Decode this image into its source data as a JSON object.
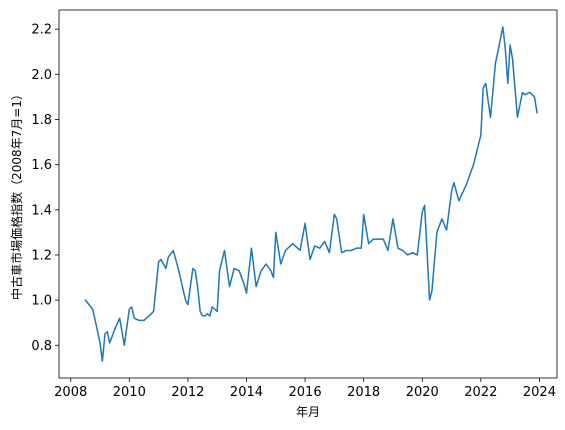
{
  "chart_data": {
    "type": "line",
    "xlabel": "年月",
    "ylabel": "中古車市場価格指数（2008年7月=1）",
    "xlim": [
      2007.6,
      2024.6
    ],
    "ylim": [
      0.655,
      2.285
    ],
    "xticks": [
      2008,
      2010,
      2012,
      2014,
      2016,
      2018,
      2020,
      2022,
      2024
    ],
    "xtick_labels": [
      "2008",
      "2010",
      "2012",
      "2014",
      "2016",
      "2018",
      "2020",
      "2022",
      "2024"
    ],
    "yticks": [
      0.8,
      1.0,
      1.2,
      1.4,
      1.6,
      1.8,
      2.0,
      2.2
    ],
    "ytick_labels": [
      "0.8",
      "1.0",
      "1.2",
      "1.4",
      "1.6",
      "1.8",
      "2.0",
      "2.2"
    ],
    "grid": false,
    "series": [
      {
        "color": "#1f77b4",
        "x": [
          2008.5,
          2008.75,
          2008.92,
          2009.0,
          2009.08,
          2009.17,
          2009.25,
          2009.33,
          2009.5,
          2009.67,
          2009.83,
          2010.0,
          2010.08,
          2010.17,
          2010.33,
          2010.5,
          2010.67,
          2010.83,
          2011.0,
          2011.08,
          2011.25,
          2011.33,
          2011.5,
          2011.67,
          2011.83,
          2011.92,
          2012.0,
          2012.17,
          2012.25,
          2012.33,
          2012.42,
          2012.5,
          2012.58,
          2012.67,
          2012.75,
          2012.83,
          2013.0,
          2013.08,
          2013.25,
          2013.42,
          2013.58,
          2013.75,
          2013.92,
          2014.0,
          2014.17,
          2014.33,
          2014.5,
          2014.67,
          2014.83,
          2014.92,
          2015.0,
          2015.17,
          2015.33,
          2015.58,
          2015.83,
          2016.0,
          2016.17,
          2016.33,
          2016.5,
          2016.67,
          2016.83,
          2017.0,
          2017.08,
          2017.25,
          2017.42,
          2017.58,
          2017.75,
          2017.92,
          2018.0,
          2018.17,
          2018.33,
          2018.5,
          2018.67,
          2018.83,
          2019.0,
          2019.17,
          2019.33,
          2019.5,
          2019.67,
          2019.83,
          2020.0,
          2020.08,
          2020.17,
          2020.25,
          2020.33,
          2020.5,
          2020.67,
          2020.83,
          2021.0,
          2021.08,
          2021.25,
          2021.5,
          2021.75,
          2022.0,
          2022.08,
          2022.17,
          2022.25,
          2022.33,
          2022.5,
          2022.58,
          2022.75,
          2022.83,
          2022.92,
          2023.0,
          2023.08,
          2023.25,
          2023.42,
          2023.5,
          2023.67,
          2023.83,
          2023.92
        ],
        "y": [
          1.0,
          0.96,
          0.86,
          0.81,
          0.73,
          0.85,
          0.86,
          0.81,
          0.87,
          0.92,
          0.8,
          0.96,
          0.97,
          0.92,
          0.91,
          0.91,
          0.93,
          0.95,
          1.17,
          1.18,
          1.14,
          1.19,
          1.22,
          1.14,
          1.05,
          1.0,
          0.98,
          1.14,
          1.13,
          1.06,
          0.95,
          0.93,
          0.93,
          0.94,
          0.93,
          0.97,
          0.95,
          1.13,
          1.22,
          1.06,
          1.14,
          1.13,
          1.07,
          1.03,
          1.23,
          1.06,
          1.13,
          1.16,
          1.13,
          1.1,
          1.3,
          1.16,
          1.22,
          1.25,
          1.22,
          1.34,
          1.18,
          1.24,
          1.23,
          1.26,
          1.21,
          1.38,
          1.36,
          1.21,
          1.22,
          1.22,
          1.23,
          1.23,
          1.38,
          1.25,
          1.27,
          1.27,
          1.27,
          1.22,
          1.36,
          1.23,
          1.22,
          1.2,
          1.21,
          1.2,
          1.39,
          1.42,
          1.2,
          1.0,
          1.04,
          1.3,
          1.36,
          1.31,
          1.48,
          1.52,
          1.44,
          1.51,
          1.6,
          1.73,
          1.94,
          1.96,
          1.88,
          1.81,
          2.05,
          2.1,
          2.21,
          2.12,
          1.96,
          2.13,
          2.07,
          1.81,
          1.92,
          1.91,
          1.92,
          1.9,
          1.83
        ]
      }
    ]
  }
}
